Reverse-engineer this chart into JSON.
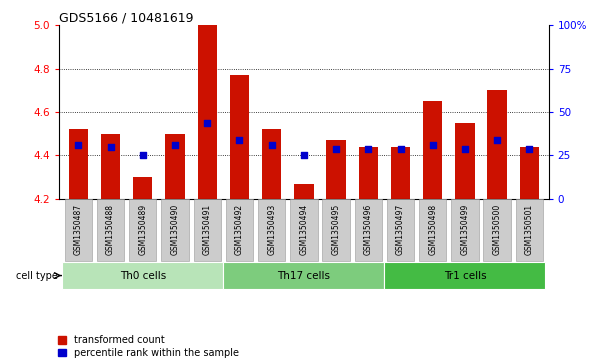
{
  "title": "GDS5166 / 10481619",
  "samples": [
    "GSM1350487",
    "GSM1350488",
    "GSM1350489",
    "GSM1350490",
    "GSM1350491",
    "GSM1350492",
    "GSM1350493",
    "GSM1350494",
    "GSM1350495",
    "GSM1350496",
    "GSM1350497",
    "GSM1350498",
    "GSM1350499",
    "GSM1350500",
    "GSM1350501"
  ],
  "bar_values": [
    4.52,
    4.5,
    4.3,
    4.5,
    5.0,
    4.77,
    4.52,
    4.27,
    4.47,
    4.44,
    4.44,
    4.65,
    4.55,
    4.7,
    4.44
  ],
  "percentile_values": [
    4.45,
    4.44,
    4.4,
    4.45,
    4.55,
    4.47,
    4.45,
    4.4,
    4.43,
    4.43,
    4.43,
    4.45,
    4.43,
    4.47,
    4.43
  ],
  "y_min": 4.2,
  "y_max": 5.0,
  "y_ticks": [
    4.2,
    4.4,
    4.6,
    4.8,
    5.0
  ],
  "right_y_ticks": [
    0,
    25,
    50,
    75,
    100
  ],
  "right_y_labels": [
    "0",
    "25",
    "50",
    "75",
    "100%"
  ],
  "bar_color": "#cc1100",
  "dot_color": "#0000cc",
  "cell_types": [
    {
      "label": "Th0 cells",
      "start": 0,
      "end": 5,
      "color": "#b8e4b8"
    },
    {
      "label": "Th17 cells",
      "start": 5,
      "end": 10,
      "color": "#7dcc7d"
    },
    {
      "label": "Tr1 cells",
      "start": 10,
      "end": 15,
      "color": "#44bb44"
    }
  ],
  "legend_items": [
    {
      "label": "transformed count",
      "color": "#cc1100",
      "marker": "s"
    },
    {
      "label": "percentile rank within the sample",
      "color": "#0000cc",
      "marker": "s"
    }
  ]
}
